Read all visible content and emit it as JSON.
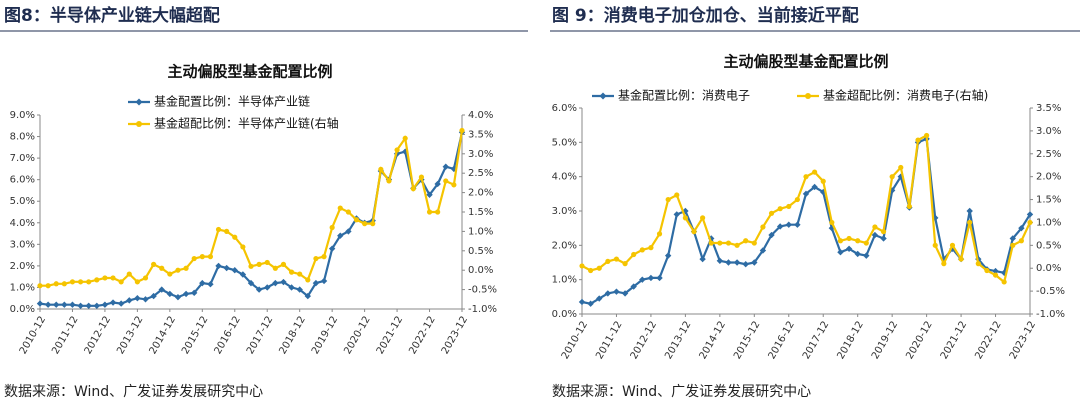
{
  "headers": [
    "图8：半导体产业链大幅超配",
    "图 9：消费电子加仓加仓、当前接近平配"
  ],
  "sources": [
    "数据来源：Wind、广发证券发展研究中心",
    "数据来源：Wind、广发证券发展研究中心"
  ],
  "chart_data": [
    {
      "type": "line",
      "title": "主动偏股型基金配置比例",
      "legend": "top-left",
      "categories": [
        "2010-12",
        null,
        null,
        null,
        "2011-12",
        null,
        null,
        null,
        "2012-12",
        null,
        null,
        null,
        "2013-12",
        null,
        null,
        null,
        "2014-12",
        null,
        null,
        null,
        "2015-12",
        null,
        null,
        null,
        "2016-12",
        null,
        null,
        null,
        "2017-12",
        null,
        null,
        null,
        "2018-12",
        null,
        null,
        null,
        "2019-12",
        null,
        null,
        null,
        "2020-12",
        null,
        null,
        null,
        "2021-12",
        null,
        null,
        null,
        "2022-12",
        null,
        null,
        null,
        "2023-12"
      ],
      "ylim": [
        0,
        9
      ],
      "yticks": [
        {
          "value": 0,
          "label": "0.0%"
        },
        {
          "value": 1,
          "label": "1.0%"
        },
        {
          "value": 2,
          "label": "2.0%"
        },
        {
          "value": 3,
          "label": "3.0%"
        },
        {
          "value": 4,
          "label": "4.0%"
        },
        {
          "value": 5,
          "label": "5.0%"
        },
        {
          "value": 6,
          "label": "6.0%"
        },
        {
          "value": 7,
          "label": "7.0%"
        },
        {
          "value": 8,
          "label": "8.0%"
        },
        {
          "value": 9,
          "label": "9.0%"
        }
      ],
      "y2lim": [
        -1,
        4
      ],
      "y2ticks": [
        {
          "value": -1,
          "label": "-1.0%"
        },
        {
          "value": -0.5,
          "label": "-0.5%"
        },
        {
          "value": 0,
          "label": "0.0%"
        },
        {
          "value": 0.5,
          "label": "0.5%"
        },
        {
          "value": 1,
          "label": "1.0%"
        },
        {
          "value": 1.5,
          "label": "1.5%"
        },
        {
          "value": 2,
          "label": "2.0%"
        },
        {
          "value": 2.5,
          "label": "2.5%"
        },
        {
          "value": 3,
          "label": "3.0%"
        },
        {
          "value": 3.5,
          "label": "3.5%"
        },
        {
          "value": 4,
          "label": "4.0%"
        }
      ],
      "series": [
        {
          "name": "基金配置比例：半导体产业链",
          "color": "#2e6ca4",
          "marker": "diamond",
          "values": [
            0.25,
            0.2,
            0.2,
            0.2,
            0.2,
            0.15,
            0.15,
            0.15,
            0.2,
            0.3,
            0.25,
            0.4,
            0.5,
            0.45,
            0.6,
            0.9,
            0.7,
            0.55,
            0.7,
            0.75,
            1.2,
            1.15,
            2.0,
            1.9,
            1.8,
            1.6,
            1.2,
            0.9,
            1.0,
            1.2,
            1.25,
            1.0,
            0.9,
            0.6,
            1.2,
            1.3,
            2.8,
            3.4,
            3.6,
            4.2,
            4.0,
            4.1,
            6.4,
            6.0,
            7.2,
            7.3,
            5.6,
            6.0,
            5.3,
            5.8,
            6.6,
            6.5,
            8.2
          ]
        },
        {
          "name": "基金超配比例：半导体产业链(右轴",
          "color": "#f5c400",
          "marker": "circle",
          "axis": "y2",
          "values": [
            -0.4,
            -0.4,
            -0.35,
            -0.35,
            -0.3,
            -0.3,
            -0.3,
            -0.25,
            -0.2,
            -0.2,
            -0.3,
            -0.1,
            -0.3,
            -0.2,
            0.15,
            0.05,
            -0.1,
            0.0,
            0.05,
            0.3,
            0.35,
            0.35,
            1.05,
            1.0,
            0.85,
            0.6,
            0.1,
            0.15,
            0.2,
            0.05,
            0.15,
            -0.05,
            -0.1,
            -0.25,
            0.3,
            0.35,
            1.1,
            1.6,
            1.5,
            1.3,
            1.2,
            1.2,
            2.6,
            2.3,
            3.1,
            3.4,
            2.1,
            2.4,
            1.5,
            1.5,
            2.3,
            2.2,
            3.6
          ]
        }
      ]
    },
    {
      "type": "line",
      "title": "主动偏股型基金配置比例",
      "legend": "top",
      "categories": [
        "2010-12",
        null,
        null,
        null,
        "2011-12",
        null,
        null,
        null,
        "2012-12",
        null,
        null,
        null,
        "2013-12",
        null,
        null,
        null,
        "2014-12",
        null,
        null,
        null,
        "2015-12",
        null,
        null,
        null,
        "2016-12",
        null,
        null,
        null,
        "2017-12",
        null,
        null,
        null,
        "2018-12",
        null,
        null,
        null,
        "2019-12",
        null,
        null,
        null,
        "2020-12",
        null,
        null,
        null,
        "2021-12",
        null,
        null,
        null,
        "2022-12",
        null,
        null,
        null,
        "2023-12"
      ],
      "ylim": [
        0,
        6
      ],
      "yticks": [
        {
          "value": 0,
          "label": "0.0%"
        },
        {
          "value": 1,
          "label": "1.0%"
        },
        {
          "value": 2,
          "label": "2.0%"
        },
        {
          "value": 3,
          "label": "3.0%"
        },
        {
          "value": 4,
          "label": "4.0%"
        },
        {
          "value": 5,
          "label": "5.0%"
        },
        {
          "value": 6,
          "label": "6.0%"
        }
      ],
      "y2lim": [
        -1,
        3.5
      ],
      "y2ticks": [
        {
          "value": -1,
          "label": "-1.0%"
        },
        {
          "value": -0.5,
          "label": "-0.5%"
        },
        {
          "value": 0,
          "label": "0.0%"
        },
        {
          "value": 0.5,
          "label": "0.5%"
        },
        {
          "value": 1,
          "label": "1.0%"
        },
        {
          "value": 1.5,
          "label": "1.5%"
        },
        {
          "value": 2,
          "label": "2.0%"
        },
        {
          "value": 2.5,
          "label": "2.5%"
        },
        {
          "value": 3,
          "label": "3.0%"
        },
        {
          "value": 3.5,
          "label": "3.5%"
        }
      ],
      "series": [
        {
          "name": "基金配置比例：消费电子",
          "color": "#2e6ca4",
          "marker": "diamond",
          "values": [
            0.35,
            0.3,
            0.45,
            0.6,
            0.65,
            0.6,
            0.8,
            1.0,
            1.05,
            1.05,
            1.7,
            2.9,
            3.0,
            2.4,
            1.6,
            2.2,
            1.55,
            1.5,
            1.5,
            1.45,
            1.5,
            1.85,
            2.3,
            2.55,
            2.6,
            2.6,
            3.5,
            3.7,
            3.55,
            2.5,
            1.8,
            1.9,
            1.75,
            1.7,
            2.3,
            2.2,
            3.6,
            4.0,
            3.1,
            5.0,
            5.1,
            2.8,
            1.6,
            1.9,
            1.6,
            3.0,
            1.6,
            1.3,
            1.25,
            1.2,
            2.2,
            2.5,
            2.9
          ]
        },
        {
          "name": "基金超配比例：消费电子(右轴)",
          "color": "#f5c400",
          "marker": "circle",
          "axis": "y2",
          "values": [
            0.05,
            -0.05,
            0.0,
            0.15,
            0.2,
            0.1,
            0.3,
            0.4,
            0.45,
            0.75,
            1.5,
            1.6,
            1.1,
            0.8,
            1.1,
            0.55,
            0.55,
            0.55,
            0.5,
            0.6,
            0.55,
            0.9,
            1.2,
            1.3,
            1.35,
            1.5,
            2.0,
            2.1,
            1.9,
            1.0,
            0.6,
            0.65,
            0.6,
            0.55,
            0.9,
            0.8,
            2.0,
            2.2,
            1.35,
            2.8,
            2.9,
            0.5,
            0.1,
            0.5,
            0.2,
            1.0,
            0.1,
            -0.05,
            -0.15,
            -0.3,
            0.5,
            0.6,
            1.0
          ]
        }
      ]
    }
  ]
}
